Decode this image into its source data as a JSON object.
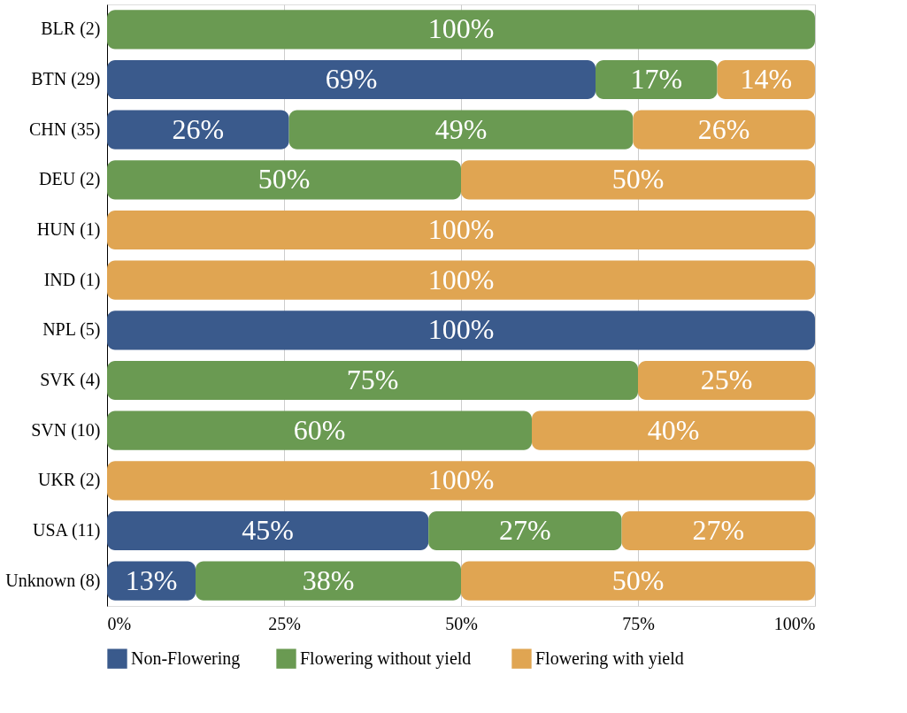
{
  "chart_data": {
    "type": "bar",
    "orientation": "horizontal",
    "stacked": true,
    "categories": [
      "BLR (2)",
      "BTN (29)",
      "CHN (35)",
      "DEU (2)",
      "HUN (1)",
      "IND (1)",
      "NPL (5)",
      "SVK (4)",
      "SVN (10)",
      "UKR (2)",
      "USA (11)",
      "Unknown (8)"
    ],
    "series": [
      {
        "name": "Non-Flowering",
        "color": "#3a5a8c",
        "values": [
          null,
          69.0,
          25.7,
          null,
          null,
          null,
          100,
          null,
          null,
          null,
          45.4,
          12.5
        ],
        "value_labels": [
          null,
          "69%",
          "26%",
          null,
          null,
          null,
          "100%",
          null,
          null,
          null,
          "45%",
          "13%"
        ]
      },
      {
        "name": "Flowering without  yield",
        "color": "#6a9a52",
        "values": [
          100,
          17.2,
          48.6,
          50,
          null,
          null,
          null,
          75,
          60,
          null,
          27.3,
          37.5
        ],
        "value_labels": [
          "100%",
          "17%",
          "49%",
          "50%",
          null,
          null,
          null,
          "75%",
          "60%",
          null,
          "27%",
          "38%"
        ]
      },
      {
        "name": "Flowering with yield",
        "color": "#e0a552",
        "values": [
          null,
          13.8,
          25.7,
          50,
          100,
          100,
          null,
          25,
          40,
          100,
          27.3,
          50
        ],
        "value_labels": [
          null,
          "14%",
          "26%",
          "50%",
          "100%",
          "100%",
          null,
          "25%",
          "40%",
          "100%",
          "27%",
          "50%"
        ]
      }
    ],
    "xlim": [
      0,
      100
    ],
    "xticks": [
      {
        "value": 0,
        "label": "0%"
      },
      {
        "value": 25,
        "label": "25%"
      },
      {
        "value": 50,
        "label": "50%"
      },
      {
        "value": 75,
        "label": "75%"
      },
      {
        "value": 100,
        "label": "100%"
      }
    ],
    "grid": "x",
    "legend": "bottom"
  }
}
